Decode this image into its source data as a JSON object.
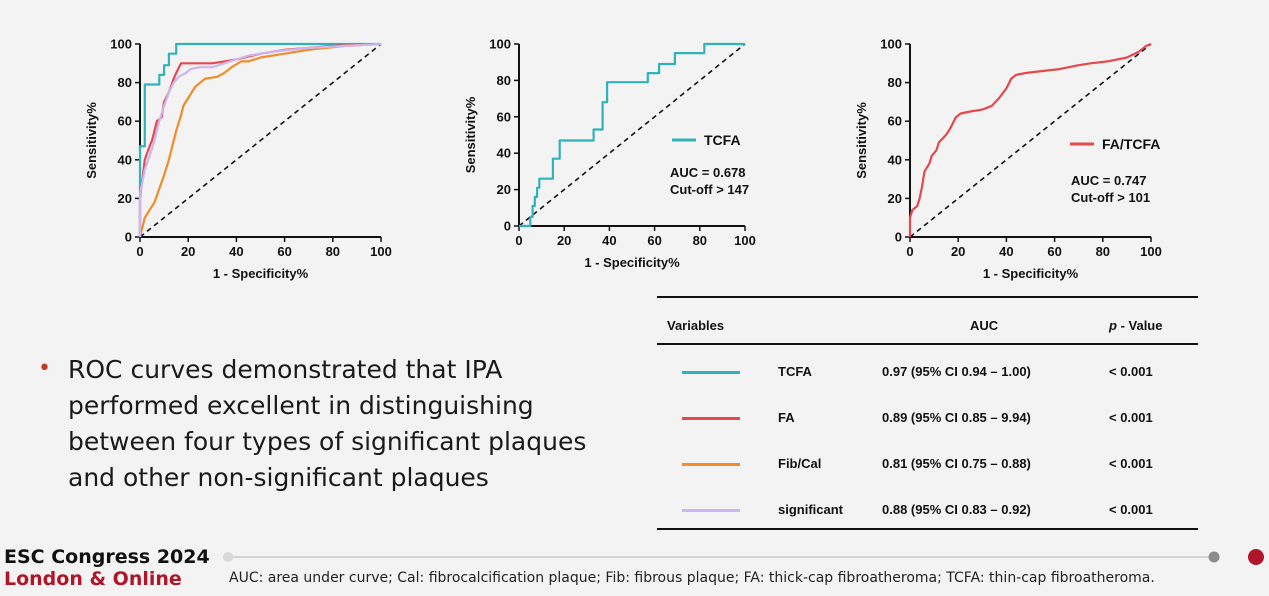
{
  "chart_data": [
    {
      "type": "line",
      "xlabel": "1 - Specificity%",
      "ylabel": "Sensitivity%",
      "xlim": [
        0,
        100
      ],
      "ylim": [
        0,
        100
      ],
      "ticks": [
        "0",
        "20",
        "40",
        "60",
        "80",
        "100"
      ],
      "reference_line": "diagonal",
      "series": [
        {
          "name": "TCFA",
          "color": "#2fb3b8",
          "points": [
            [
              0,
              0
            ],
            [
              0,
              47
            ],
            [
              2,
              47
            ],
            [
              2,
              79
            ],
            [
              8,
              79
            ],
            [
              8,
              84
            ],
            [
              10,
              84
            ],
            [
              10,
              89
            ],
            [
              12,
              89
            ],
            [
              12,
              95
            ],
            [
              15,
              95
            ],
            [
              15,
              100
            ],
            [
              100,
              100
            ]
          ]
        },
        {
          "name": "FA",
          "color": "#e5484d",
          "points": [
            [
              0,
              0
            ],
            [
              0,
              20
            ],
            [
              1,
              30
            ],
            [
              2,
              40
            ],
            [
              4,
              47
            ],
            [
              5,
              50
            ],
            [
              6,
              55
            ],
            [
              7,
              60
            ],
            [
              9,
              62
            ],
            [
              10,
              70
            ],
            [
              12,
              75
            ],
            [
              14,
              82
            ],
            [
              15,
              85
            ],
            [
              17,
              90
            ],
            [
              30,
              90
            ],
            [
              35,
              91
            ],
            [
              40,
              92
            ],
            [
              50,
              95
            ],
            [
              60,
              97
            ],
            [
              80,
              99
            ],
            [
              100,
              100
            ]
          ]
        },
        {
          "name": "Fib/Cal",
          "color": "#f28c28",
          "points": [
            [
              0,
              0
            ],
            [
              1,
              5
            ],
            [
              2,
              10
            ],
            [
              4,
              14
            ],
            [
              6,
              18
            ],
            [
              8,
              25
            ],
            [
              10,
              32
            ],
            [
              12,
              40
            ],
            [
              13,
              45
            ],
            [
              15,
              55
            ],
            [
              17,
              63
            ],
            [
              18,
              68
            ],
            [
              20,
              72
            ],
            [
              23,
              78
            ],
            [
              27,
              82
            ],
            [
              32,
              83
            ],
            [
              35,
              85
            ],
            [
              38,
              88
            ],
            [
              42,
              91
            ],
            [
              45,
              91
            ],
            [
              50,
              93
            ],
            [
              60,
              95
            ],
            [
              70,
              97
            ],
            [
              85,
              99
            ],
            [
              100,
              100
            ]
          ]
        },
        {
          "name": "significant",
          "color": "#cdb6ef",
          "points": [
            [
              0,
              0
            ],
            [
              0,
              22
            ],
            [
              2,
              35
            ],
            [
              4,
              42
            ],
            [
              6,
              50
            ],
            [
              8,
              60
            ],
            [
              10,
              68
            ],
            [
              12,
              75
            ],
            [
              14,
              80
            ],
            [
              16,
              83
            ],
            [
              19,
              85
            ],
            [
              21,
              87
            ],
            [
              25,
              88
            ],
            [
              30,
              88
            ],
            [
              35,
              90
            ],
            [
              40,
              92
            ],
            [
              45,
              94
            ],
            [
              55,
              96
            ],
            [
              70,
              98
            ],
            [
              100,
              100
            ]
          ]
        }
      ]
    },
    {
      "type": "line",
      "xlabel": "1 - Specificity%",
      "ylabel": "Sensitivity%",
      "xlim": [
        0,
        100
      ],
      "ylim": [
        0,
        100
      ],
      "ticks": [
        "0",
        "20",
        "40",
        "60",
        "80",
        "100"
      ],
      "reference_line": "diagonal",
      "legend": {
        "label": "TCFA",
        "color": "#2fb3b8"
      },
      "annotation_lines": [
        "AUC = 0.678",
        "Cut-off > 147"
      ],
      "series": [
        {
          "name": "TCFA",
          "color": "#2fb3b8",
          "points": [
            [
              0,
              0
            ],
            [
              5,
              0
            ],
            [
              5,
              5
            ],
            [
              6,
              5
            ],
            [
              6,
              11
            ],
            [
              7,
              11
            ],
            [
              7,
              16
            ],
            [
              8,
              16
            ],
            [
              8,
              21
            ],
            [
              9,
              21
            ],
            [
              9,
              26
            ],
            [
              15,
              26
            ],
            [
              15,
              37
            ],
            [
              18,
              37
            ],
            [
              18,
              47
            ],
            [
              33,
              47
            ],
            [
              33,
              53
            ],
            [
              37,
              53
            ],
            [
              37,
              68
            ],
            [
              39,
              68
            ],
            [
              39,
              79
            ],
            [
              57,
              79
            ],
            [
              57,
              84
            ],
            [
              62,
              84
            ],
            [
              62,
              89
            ],
            [
              69,
              89
            ],
            [
              69,
              95
            ],
            [
              82,
              95
            ],
            [
              82,
              100
            ],
            [
              100,
              100
            ]
          ]
        }
      ]
    },
    {
      "type": "line",
      "xlabel": "1 - Specificity%",
      "ylabel": "Sensitivity%",
      "xlim": [
        0,
        100
      ],
      "ylim": [
        0,
        100
      ],
      "ticks": [
        "0",
        "20",
        "40",
        "60",
        "80",
        "100"
      ],
      "reference_line": "diagonal",
      "legend": {
        "label": "FA/TCFA",
        "color": "#e5484d"
      },
      "annotation_lines": [
        "AUC = 0.747",
        "Cut-off > 101"
      ],
      "series": [
        {
          "name": "FA/TCFA",
          "color": "#e5484d",
          "points": [
            [
              0,
              0
            ],
            [
              0,
              10
            ],
            [
              1,
              14
            ],
            [
              3,
              16
            ],
            [
              4,
              20
            ],
            [
              5,
              26
            ],
            [
              6,
              34
            ],
            [
              8,
              38
            ],
            [
              9,
              42
            ],
            [
              11,
              45
            ],
            [
              12,
              49
            ],
            [
              15,
              53
            ],
            [
              17,
              57
            ],
            [
              19,
              62
            ],
            [
              21,
              64
            ],
            [
              25,
              65
            ],
            [
              30,
              66
            ],
            [
              34,
              68
            ],
            [
              37,
              72
            ],
            [
              40,
              77
            ],
            [
              42,
              82
            ],
            [
              44,
              84
            ],
            [
              48,
              85
            ],
            [
              55,
              86
            ],
            [
              62,
              87
            ],
            [
              70,
              89
            ],
            [
              75,
              90
            ],
            [
              82,
              91
            ],
            [
              90,
              93
            ],
            [
              95,
              96
            ],
            [
              98,
              99
            ],
            [
              100,
              100
            ]
          ]
        }
      ]
    }
  ],
  "table": {
    "headers": {
      "variables": "Variables",
      "auc": "AUC",
      "p_italic": "p",
      "p_rest": " - Value"
    },
    "rows": [
      {
        "color": "#2fb3b8",
        "label": "TCFA",
        "auc": "0.97 (95% CI 0.94 – 1.00)",
        "p": "< 0.001"
      },
      {
        "color": "#e5484d",
        "label": "FA",
        "auc": "0.89 (95% CI 0.85 – 9.94)",
        "p": "< 0.001"
      },
      {
        "color": "#f28c28",
        "label": "Fib/Cal",
        "auc": "0.81 (95% CI 0.75 – 0.88)",
        "p": "< 0.001"
      },
      {
        "color": "#cdb6ef",
        "label": "significant",
        "auc": "0.88 (95% CI 0.83 – 0.92)",
        "p": "< 0.001"
      }
    ]
  },
  "bullet": {
    "marker": "•",
    "marker_color": "#c0392b",
    "text": "ROC curves demonstrated that IPA performed excellent in distinguishing between four types of significant plaques and other non-significant plaques"
  },
  "footer": {
    "brand_line1": "ESC Congress 2024",
    "brand_line2": "London & Online",
    "brand_color": "#b0162a",
    "note": "AUC: area under curve; Cal: fibrocalcification plaque; Fib: fibrous plaque; FA: thick-cap fibroatheroma; TCFA: thin-cap fibroatheroma."
  }
}
